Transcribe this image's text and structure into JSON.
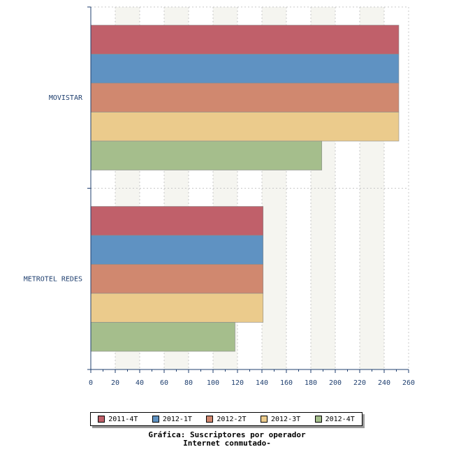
{
  "chart_data": {
    "type": "bar",
    "orientation": "horizontal",
    "categories": [
      "MOVISTAR",
      "METROTEL REDES"
    ],
    "series": [
      {
        "name": "2011-4T",
        "values": [
          252,
          141
        ],
        "color": "#c0606a"
      },
      {
        "name": "2012-1T",
        "values": [
          252,
          141
        ],
        "color": "#5f92c2"
      },
      {
        "name": "2012-2T",
        "values": [
          252,
          141
        ],
        "color": "#d0886f"
      },
      {
        "name": "2012-3T",
        "values": [
          252,
          141
        ],
        "color": "#ebcb8c"
      },
      {
        "name": "2012-4T",
        "values": [
          189,
          118
        ],
        "color": "#a5be8c"
      }
    ],
    "xlim": [
      0,
      260
    ],
    "xticks": [
      0,
      20,
      40,
      60,
      80,
      100,
      120,
      140,
      160,
      180,
      200,
      220,
      240,
      260
    ],
    "grid": true,
    "legend_position": "bottom"
  },
  "caption": {
    "line1": "Gráfica: Suscriptores por operador",
    "line2": "Internet conmutado-"
  }
}
